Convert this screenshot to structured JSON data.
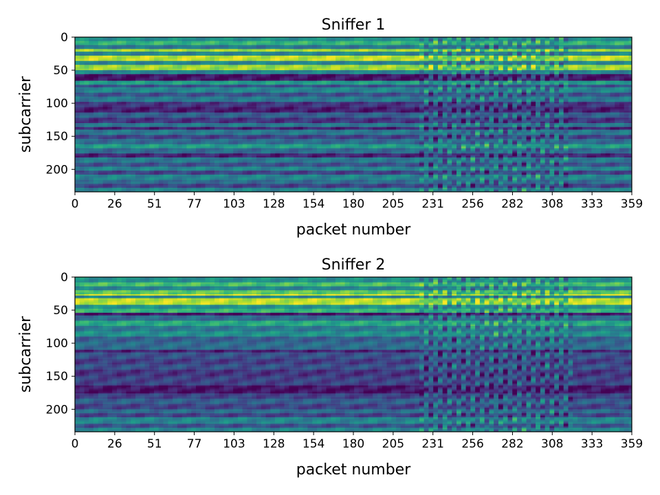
{
  "colors": {
    "viridis": [
      "#440154",
      "#482878",
      "#3e4989",
      "#31688e",
      "#26828e",
      "#1f9e89",
      "#35b779",
      "#6ece58",
      "#b5de2b",
      "#fde725"
    ]
  },
  "chart_data": [
    {
      "type": "heatmap",
      "title": "Sniffer 1",
      "xlabel": "packet number",
      "ylabel": "subcarrier",
      "colormap": "viridis",
      "xlim": [
        0,
        359
      ],
      "ylim": [
        0,
        234
      ],
      "y_inverted": true,
      "xticks": [
        "0",
        "26",
        "51",
        "77",
        "103",
        "128",
        "154",
        "180",
        "205",
        "231",
        "256",
        "282",
        "308",
        "333",
        "359"
      ],
      "yticks": [
        "0",
        "50",
        "100",
        "150",
        "200"
      ],
      "ytick_values": [
        0,
        50,
        100,
        150,
        200
      ],
      "disturbed_packets": [
        [
          222,
          316
        ]
      ],
      "subcarrier_bands": [
        {
          "from": 0,
          "to": 6,
          "intensity": 0.5
        },
        {
          "from": 6,
          "to": 12,
          "intensity": 0.65
        },
        {
          "from": 12,
          "to": 17,
          "intensity": 0.4
        },
        {
          "from": 17,
          "to": 21,
          "intensity": 0.85
        },
        {
          "from": 21,
          "to": 27,
          "intensity": 0.45
        },
        {
          "from": 27,
          "to": 36,
          "intensity": 0.9
        },
        {
          "from": 36,
          "to": 42,
          "intensity": 0.45
        },
        {
          "from": 42,
          "to": 50,
          "intensity": 0.85
        },
        {
          "from": 50,
          "to": 55,
          "intensity": 0.45
        },
        {
          "from": 55,
          "to": 65,
          "intensity": 0.05
        },
        {
          "from": 65,
          "to": 72,
          "intensity": 0.55
        },
        {
          "from": 72,
          "to": 76,
          "intensity": 0.25
        },
        {
          "from": 76,
          "to": 84,
          "intensity": 0.45
        },
        {
          "from": 84,
          "to": 90,
          "intensity": 0.25
        },
        {
          "from": 90,
          "to": 98,
          "intensity": 0.4
        },
        {
          "from": 98,
          "to": 106,
          "intensity": 0.15
        },
        {
          "from": 106,
          "to": 114,
          "intensity": 0.08
        },
        {
          "from": 114,
          "to": 122,
          "intensity": 0.3
        },
        {
          "from": 122,
          "to": 130,
          "intensity": 0.15
        },
        {
          "from": 130,
          "to": 136,
          "intensity": 0.4
        },
        {
          "from": 136,
          "to": 140,
          "intensity": 0.1
        },
        {
          "from": 140,
          "to": 148,
          "intensity": 0.4
        },
        {
          "from": 148,
          "to": 154,
          "intensity": 0.2
        },
        {
          "from": 154,
          "to": 162,
          "intensity": 0.35
        },
        {
          "from": 162,
          "to": 168,
          "intensity": 0.55
        },
        {
          "from": 168,
          "to": 176,
          "intensity": 0.35
        },
        {
          "from": 176,
          "to": 182,
          "intensity": 0.1
        },
        {
          "from": 182,
          "to": 190,
          "intensity": 0.4
        },
        {
          "from": 190,
          "to": 196,
          "intensity": 0.25
        },
        {
          "from": 196,
          "to": 202,
          "intensity": 0.45
        },
        {
          "from": 202,
          "to": 208,
          "intensity": 0.2
        },
        {
          "from": 208,
          "to": 216,
          "intensity": 0.45
        },
        {
          "from": 216,
          "to": 222,
          "intensity": 0.35
        },
        {
          "from": 222,
          "to": 228,
          "intensity": 0.2
        },
        {
          "from": 228,
          "to": 234,
          "intensity": 0.45
        }
      ]
    },
    {
      "type": "heatmap",
      "title": "Sniffer 2",
      "xlabel": "packet number",
      "ylabel": "subcarrier",
      "colormap": "viridis",
      "xlim": [
        0,
        359
      ],
      "ylim": [
        0,
        234
      ],
      "y_inverted": true,
      "xticks": [
        "0",
        "26",
        "51",
        "77",
        "103",
        "128",
        "154",
        "180",
        "205",
        "231",
        "256",
        "282",
        "308",
        "333",
        "359"
      ],
      "yticks": [
        "0",
        "50",
        "100",
        "150",
        "200"
      ],
      "ytick_values": [
        0,
        50,
        100,
        150,
        200
      ],
      "disturbed_packets": [
        [
          222,
          318
        ]
      ],
      "subcarrier_bands": [
        {
          "from": 0,
          "to": 7,
          "intensity": 0.5
        },
        {
          "from": 7,
          "to": 14,
          "intensity": 0.7
        },
        {
          "from": 14,
          "to": 20,
          "intensity": 0.45
        },
        {
          "from": 20,
          "to": 25,
          "intensity": 0.75
        },
        {
          "from": 25,
          "to": 27,
          "intensity": 0.95
        },
        {
          "from": 27,
          "to": 32,
          "intensity": 0.45
        },
        {
          "from": 32,
          "to": 42,
          "intensity": 0.9
        },
        {
          "from": 42,
          "to": 48,
          "intensity": 0.5
        },
        {
          "from": 48,
          "to": 54,
          "intensity": 0.65
        },
        {
          "from": 54,
          "to": 58,
          "intensity": 0.05
        },
        {
          "from": 58,
          "to": 66,
          "intensity": 0.35
        },
        {
          "from": 66,
          "to": 74,
          "intensity": 0.6
        },
        {
          "from": 74,
          "to": 82,
          "intensity": 0.4
        },
        {
          "from": 82,
          "to": 90,
          "intensity": 0.5
        },
        {
          "from": 90,
          "to": 98,
          "intensity": 0.3
        },
        {
          "from": 98,
          "to": 110,
          "intensity": 0.35
        },
        {
          "from": 110,
          "to": 114,
          "intensity": 0.1
        },
        {
          "from": 114,
          "to": 124,
          "intensity": 0.25
        },
        {
          "from": 124,
          "to": 132,
          "intensity": 0.18
        },
        {
          "from": 132,
          "to": 140,
          "intensity": 0.25
        },
        {
          "from": 140,
          "to": 150,
          "intensity": 0.15
        },
        {
          "from": 150,
          "to": 164,
          "intensity": 0.2
        },
        {
          "from": 164,
          "to": 176,
          "intensity": 0.05
        },
        {
          "from": 176,
          "to": 184,
          "intensity": 0.2
        },
        {
          "from": 184,
          "to": 192,
          "intensity": 0.3
        },
        {
          "from": 192,
          "to": 200,
          "intensity": 0.2
        },
        {
          "from": 200,
          "to": 206,
          "intensity": 0.35
        },
        {
          "from": 206,
          "to": 212,
          "intensity": 0.2
        },
        {
          "from": 212,
          "to": 222,
          "intensity": 0.45
        },
        {
          "from": 222,
          "to": 228,
          "intensity": 0.25
        },
        {
          "from": 228,
          "to": 234,
          "intensity": 0.45
        }
      ]
    }
  ]
}
